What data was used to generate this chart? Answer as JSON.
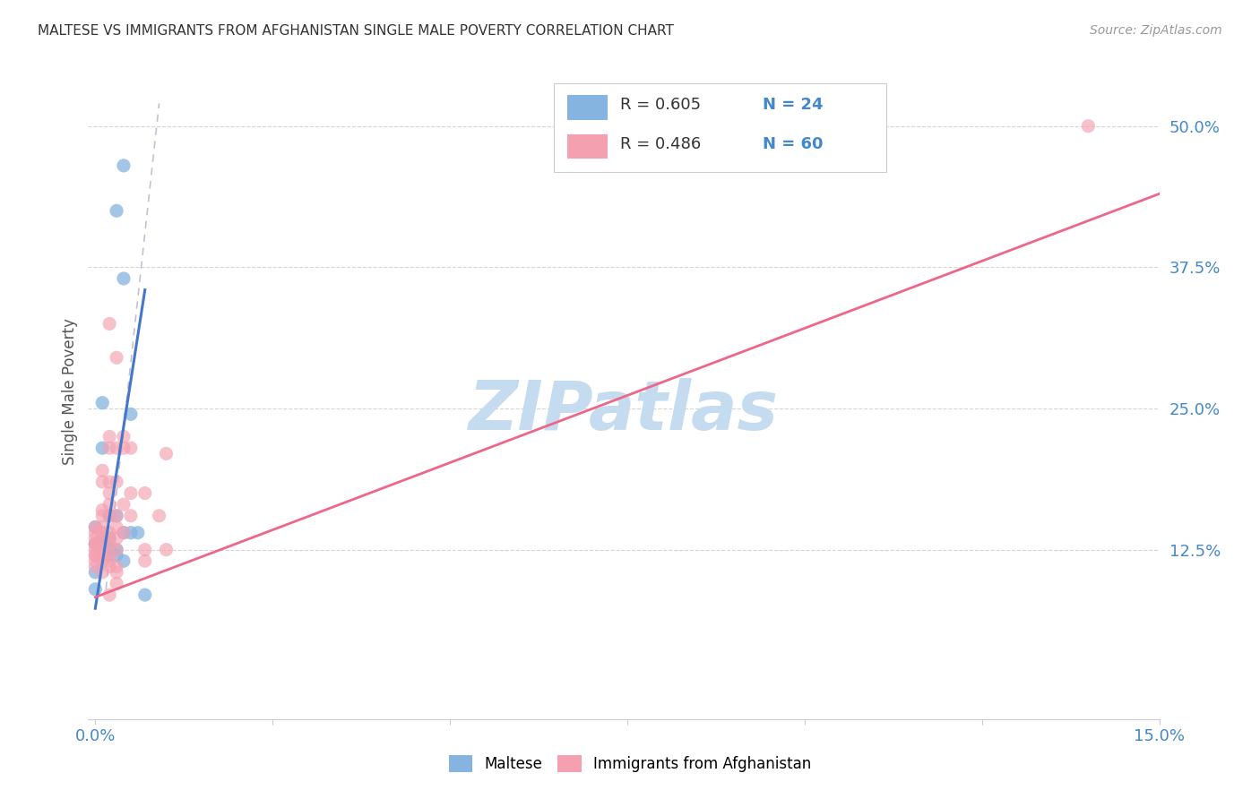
{
  "title": "MALTESE VS IMMIGRANTS FROM AFGHANISTAN SINGLE MALE POVERTY CORRELATION CHART",
  "source": "Source: ZipAtlas.com",
  "ylabel": "Single Male Poverty",
  "ytick_labels": [
    "12.5%",
    "25.0%",
    "37.5%",
    "50.0%"
  ],
  "ytick_vals": [
    0.125,
    0.25,
    0.375,
    0.5
  ],
  "xlim": [
    -0.001,
    0.15
  ],
  "ylim": [
    -0.025,
    0.555
  ],
  "blue_color": "#85B4E0",
  "pink_color": "#F4A0B0",
  "blue_scatter": "#85B4E0",
  "pink_scatter": "#F4A0B0",
  "blue_line_color": "#4477CC",
  "pink_line_color": "#EE6688",
  "dash_color": "#BBBBCC",
  "watermark_color": "#C5DCF0",
  "blue_line_x": [
    0.0,
    0.007
  ],
  "blue_line_y": [
    0.073,
    0.355
  ],
  "pink_line_x": [
    0.0,
    0.15
  ],
  "pink_line_y": [
    0.083,
    0.44
  ],
  "dash_line_x": [
    0.0015,
    0.009
  ],
  "dash_line_y": [
    0.09,
    0.52
  ],
  "maltese_points": [
    [
      0.0,
      0.09
    ],
    [
      0.0,
      0.13
    ],
    [
      0.0,
      0.105
    ],
    [
      0.0,
      0.145
    ],
    [
      0.001,
      0.255
    ],
    [
      0.001,
      0.215
    ],
    [
      0.001,
      0.135
    ],
    [
      0.001,
      0.13
    ],
    [
      0.002,
      0.155
    ],
    [
      0.002,
      0.135
    ],
    [
      0.002,
      0.125
    ],
    [
      0.002,
      0.12
    ],
    [
      0.003,
      0.425
    ],
    [
      0.003,
      0.155
    ],
    [
      0.003,
      0.125
    ],
    [
      0.003,
      0.12
    ],
    [
      0.004,
      0.465
    ],
    [
      0.004,
      0.365
    ],
    [
      0.004,
      0.14
    ],
    [
      0.004,
      0.115
    ],
    [
      0.005,
      0.245
    ],
    [
      0.005,
      0.14
    ],
    [
      0.006,
      0.14
    ],
    [
      0.007,
      0.085
    ]
  ],
  "afghan_points": [
    [
      0.0,
      0.145
    ],
    [
      0.0,
      0.14
    ],
    [
      0.0,
      0.135
    ],
    [
      0.0,
      0.13
    ],
    [
      0.0,
      0.13
    ],
    [
      0.0,
      0.125
    ],
    [
      0.0,
      0.12
    ],
    [
      0.0,
      0.12
    ],
    [
      0.0,
      0.115
    ],
    [
      0.0,
      0.11
    ],
    [
      0.001,
      0.195
    ],
    [
      0.001,
      0.185
    ],
    [
      0.001,
      0.16
    ],
    [
      0.001,
      0.155
    ],
    [
      0.001,
      0.145
    ],
    [
      0.001,
      0.14
    ],
    [
      0.001,
      0.14
    ],
    [
      0.001,
      0.135
    ],
    [
      0.001,
      0.125
    ],
    [
      0.001,
      0.12
    ],
    [
      0.001,
      0.115
    ],
    [
      0.001,
      0.105
    ],
    [
      0.002,
      0.325
    ],
    [
      0.002,
      0.225
    ],
    [
      0.002,
      0.215
    ],
    [
      0.002,
      0.185
    ],
    [
      0.002,
      0.175
    ],
    [
      0.002,
      0.165
    ],
    [
      0.002,
      0.155
    ],
    [
      0.002,
      0.14
    ],
    [
      0.002,
      0.135
    ],
    [
      0.002,
      0.13
    ],
    [
      0.002,
      0.12
    ],
    [
      0.002,
      0.115
    ],
    [
      0.002,
      0.11
    ],
    [
      0.002,
      0.085
    ],
    [
      0.003,
      0.295
    ],
    [
      0.003,
      0.215
    ],
    [
      0.003,
      0.185
    ],
    [
      0.003,
      0.155
    ],
    [
      0.003,
      0.145
    ],
    [
      0.003,
      0.135
    ],
    [
      0.003,
      0.125
    ],
    [
      0.003,
      0.11
    ],
    [
      0.003,
      0.105
    ],
    [
      0.003,
      0.095
    ],
    [
      0.004,
      0.225
    ],
    [
      0.004,
      0.215
    ],
    [
      0.004,
      0.165
    ],
    [
      0.004,
      0.14
    ],
    [
      0.005,
      0.215
    ],
    [
      0.005,
      0.175
    ],
    [
      0.005,
      0.155
    ],
    [
      0.007,
      0.175
    ],
    [
      0.007,
      0.125
    ],
    [
      0.007,
      0.115
    ],
    [
      0.009,
      0.155
    ],
    [
      0.01,
      0.21
    ],
    [
      0.01,
      0.125
    ],
    [
      0.14,
      0.5
    ]
  ]
}
